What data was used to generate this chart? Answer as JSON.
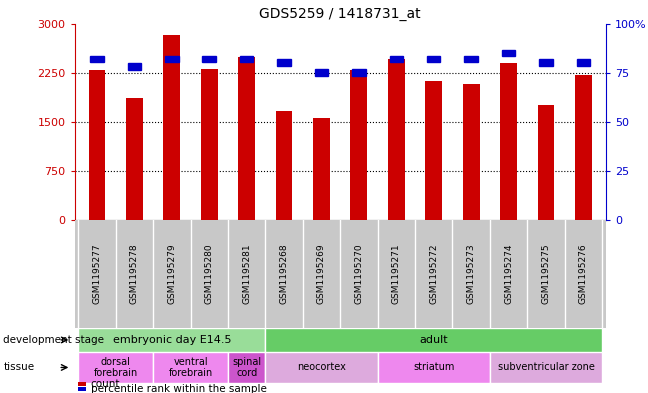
{
  "title": "GDS5259 / 1418731_at",
  "samples": [
    "GSM1195277",
    "GSM1195278",
    "GSM1195279",
    "GSM1195280",
    "GSM1195281",
    "GSM1195268",
    "GSM1195269",
    "GSM1195270",
    "GSM1195271",
    "GSM1195272",
    "GSM1195273",
    "GSM1195274",
    "GSM1195275",
    "GSM1195276"
  ],
  "counts": [
    2290,
    1870,
    2820,
    2310,
    2490,
    1660,
    1560,
    2290,
    2460,
    2120,
    2080,
    2400,
    1750,
    2210
  ],
  "percentiles": [
    82,
    78,
    82,
    82,
    82,
    80,
    75,
    75,
    82,
    82,
    82,
    85,
    80,
    80
  ],
  "left_ylim": [
    0,
    3000
  ],
  "right_ylim": [
    0,
    100
  ],
  "left_yticks": [
    0,
    750,
    1500,
    2250,
    3000
  ],
  "right_yticks": [
    0,
    25,
    50,
    75,
    100
  ],
  "bar_color": "#cc0000",
  "square_color": "#0000cc",
  "plot_bg": "#ffffff",
  "tick_area_bg": "#c8c8c8",
  "dev_stage_embryonic": {
    "label": "embryonic day E14.5",
    "start": 0,
    "end": 5,
    "color": "#99dd99"
  },
  "dev_stage_adult": {
    "label": "adult",
    "start": 5,
    "end": 14,
    "color": "#66cc66"
  },
  "tissues": [
    {
      "label": "dorsal\nforebrain",
      "start": 0,
      "end": 2,
      "color": "#ee88ee"
    },
    {
      "label": "ventral\nforebrain",
      "start": 2,
      "end": 4,
      "color": "#ee88ee"
    },
    {
      "label": "spinal\ncord",
      "start": 4,
      "end": 5,
      "color": "#cc55cc"
    },
    {
      "label": "neocortex",
      "start": 5,
      "end": 8,
      "color": "#ddaadd"
    },
    {
      "label": "striatum",
      "start": 8,
      "end": 11,
      "color": "#ee88ee"
    },
    {
      "label": "subventricular zone",
      "start": 11,
      "end": 14,
      "color": "#ddaadd"
    }
  ]
}
